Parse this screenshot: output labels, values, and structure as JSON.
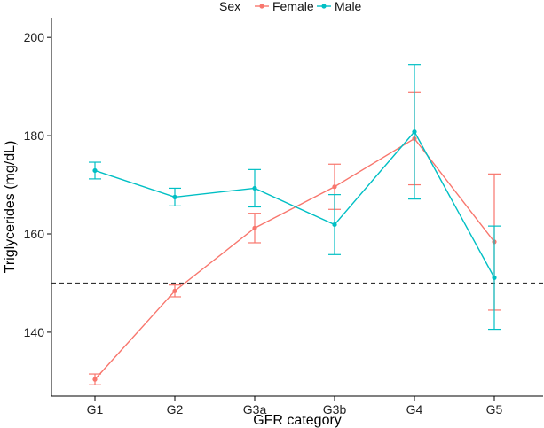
{
  "chart_data": {
    "type": "line",
    "title": "",
    "xlabel": "GFR category",
    "ylabel": "Triglycerides (mg/dL)",
    "categories": [
      "G1",
      "G2",
      "G3a",
      "G3b",
      "G4",
      "G5"
    ],
    "ylim": [
      127,
      204
    ],
    "yticks": [
      140,
      160,
      180,
      200
    ],
    "reference_line": {
      "y": 150,
      "style": "dashed"
    },
    "legend": {
      "title": "Sex",
      "placement": "top"
    },
    "series": [
      {
        "name": "Female",
        "color": "#F8766D",
        "values": [
          130.4,
          148.4,
          161.2,
          169.6,
          179.4,
          158.4
        ],
        "lower": [
          129.3,
          147.2,
          158.2,
          165.0,
          170.0,
          144.5
        ],
        "upper": [
          131.5,
          149.6,
          164.2,
          174.2,
          188.8,
          172.2
        ]
      },
      {
        "name": "Male",
        "color": "#00BFC4",
        "values": [
          172.9,
          167.5,
          169.3,
          161.9,
          180.8,
          151.1
        ],
        "lower": [
          171.2,
          165.7,
          165.5,
          155.8,
          167.1,
          140.6
        ],
        "upper": [
          174.6,
          169.3,
          173.1,
          168.0,
          194.5,
          161.6
        ]
      }
    ]
  }
}
